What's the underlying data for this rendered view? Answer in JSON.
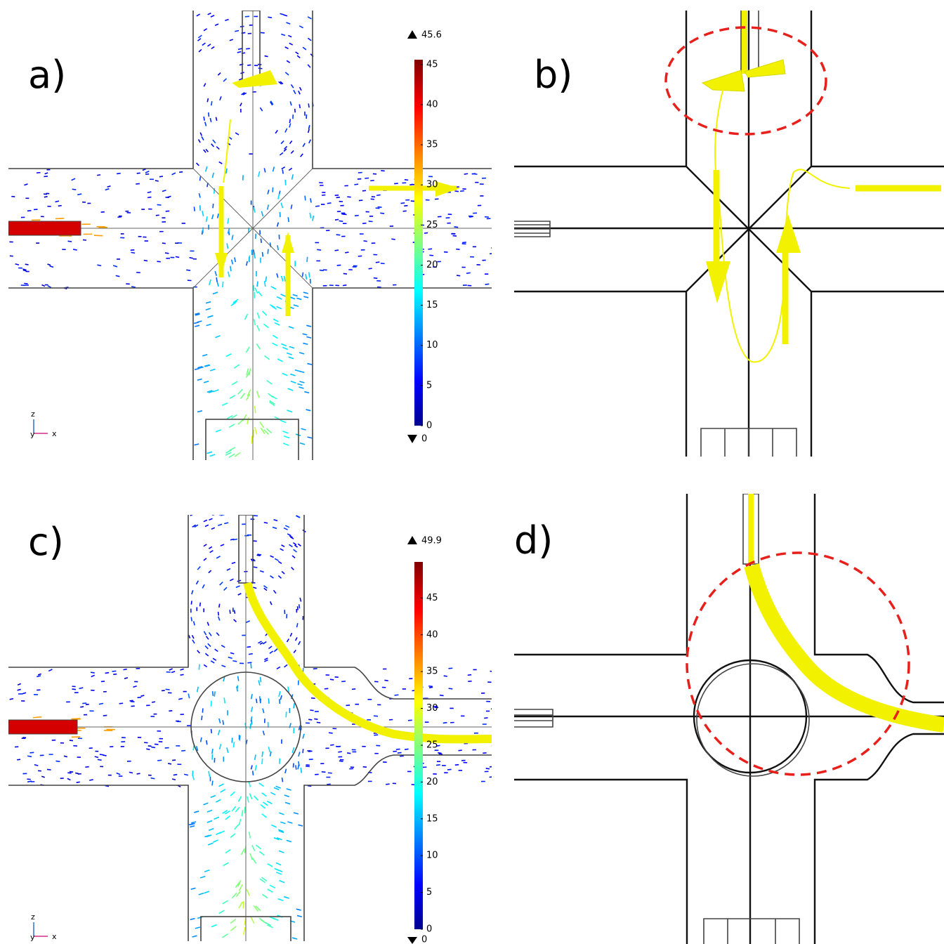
{
  "panels": [
    {
      "label": "a)",
      "colorbar": {
        "range": [
          0,
          45.6
        ],
        "ticks": [
          0,
          5,
          10,
          15,
          20,
          25,
          30,
          35,
          40,
          45
        ]
      },
      "axes": [
        "z",
        "y",
        "x"
      ]
    },
    {
      "label": "b)"
    },
    {
      "label": "c)",
      "colorbar": {
        "range": [
          0,
          49.9
        ],
        "ticks": [
          0,
          5,
          10,
          15,
          20,
          25,
          30,
          35,
          40,
          45
        ]
      },
      "axes": [
        "z",
        "y",
        "x"
      ]
    },
    {
      "label": "d)"
    }
  ]
}
